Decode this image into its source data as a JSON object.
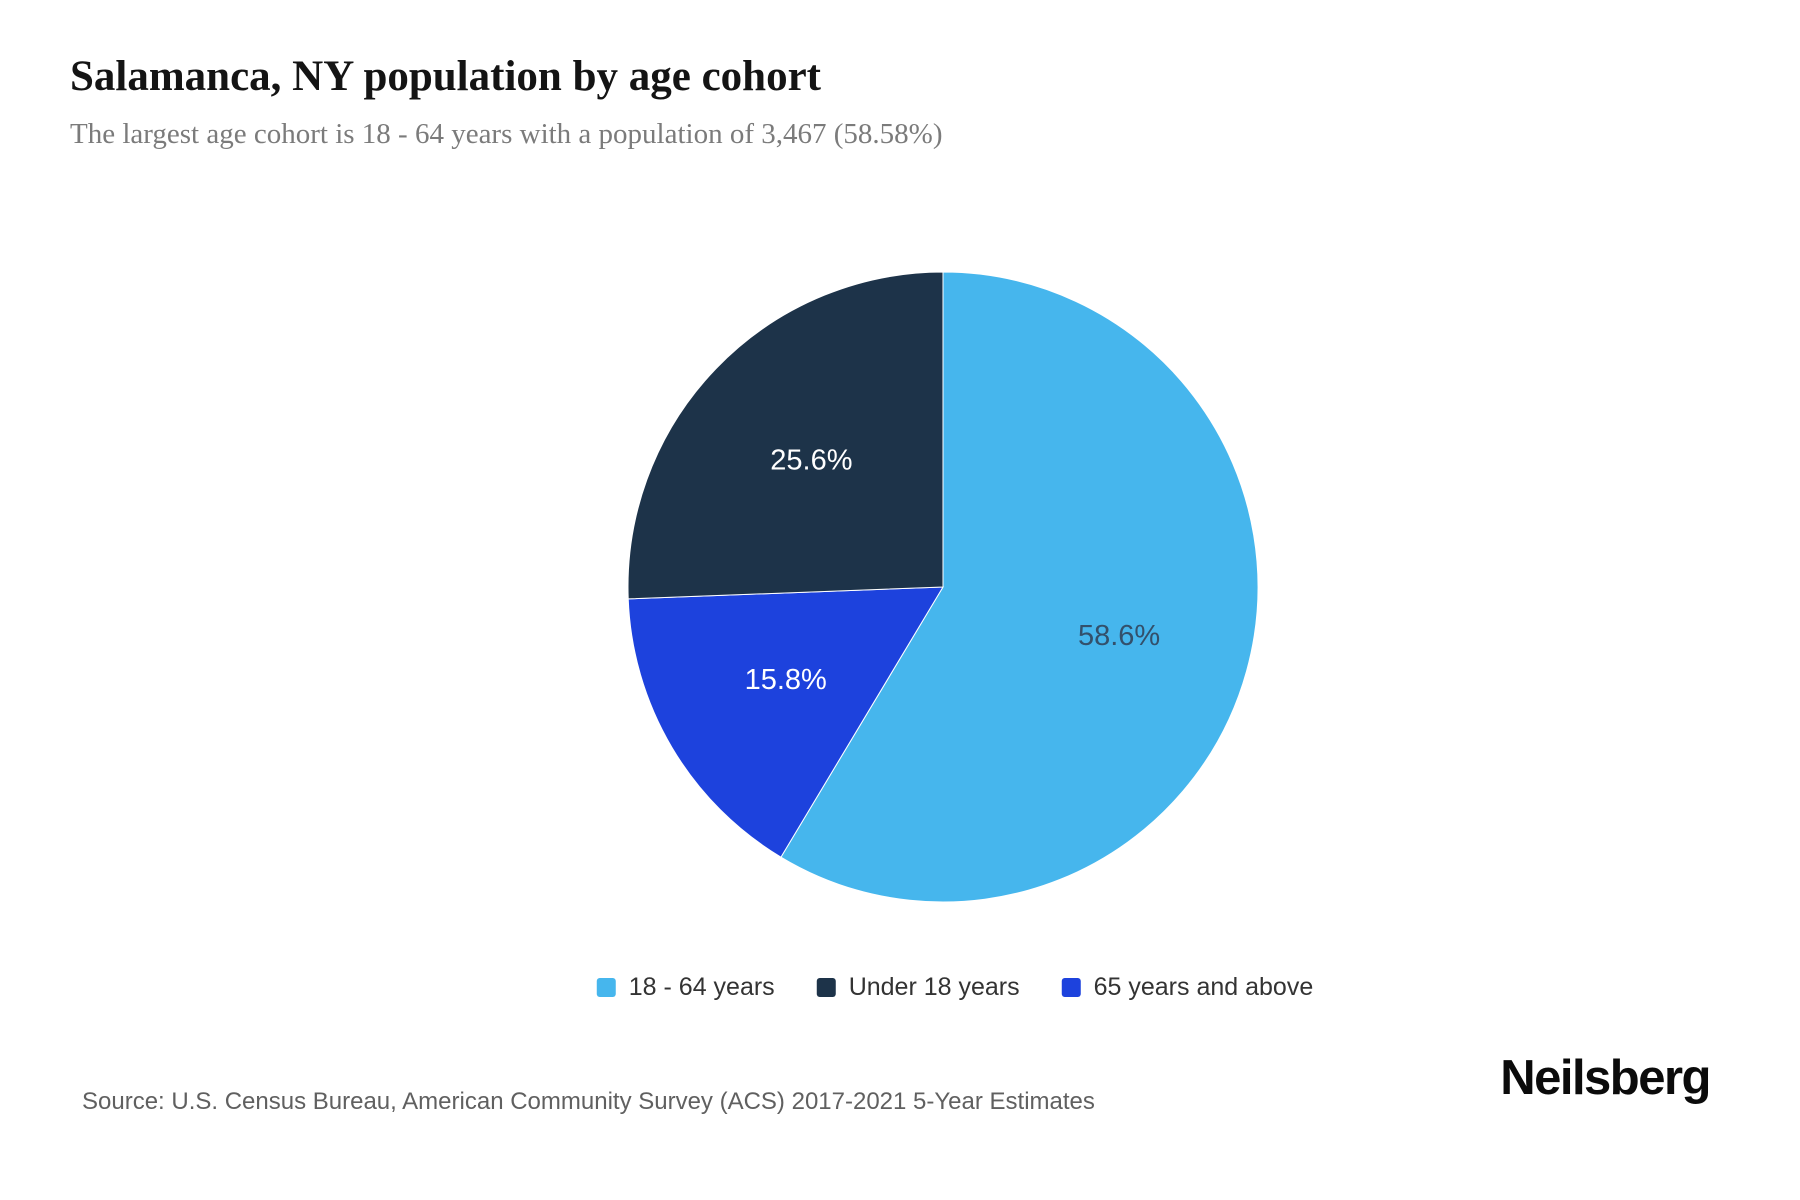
{
  "chart_data": {
    "type": "pie",
    "title": "Salamanca, NY population by age cohort",
    "subtitle": "The largest age cohort is 18 - 64 years with a population of 3,467 (58.58%)",
    "slices": [
      {
        "label": "18 - 64 years",
        "value": 58.6,
        "display_label": "58.6%",
        "color": "#46b6ed",
        "label_color": "#33506b"
      },
      {
        "label": "65 years and above",
        "value": 15.8,
        "display_label": "15.8%",
        "color": "#1d42dd",
        "label_color": "#ffffff"
      },
      {
        "label": "Under 18 years",
        "value": 25.6,
        "display_label": "25.6%",
        "color": "#1d3349",
        "label_color": "#ffffff"
      }
    ],
    "legend": [
      "18 - 64 years",
      "Under 18 years",
      "65 years and above"
    ],
    "legend_position": "bottom",
    "start_angle_deg": 0,
    "direction": "clockwise"
  },
  "footer": {
    "source": "Source: U.S. Census Bureau, American Community Survey (ACS) 2017-2021 5-Year Estimates",
    "brand": "Neilsberg"
  }
}
